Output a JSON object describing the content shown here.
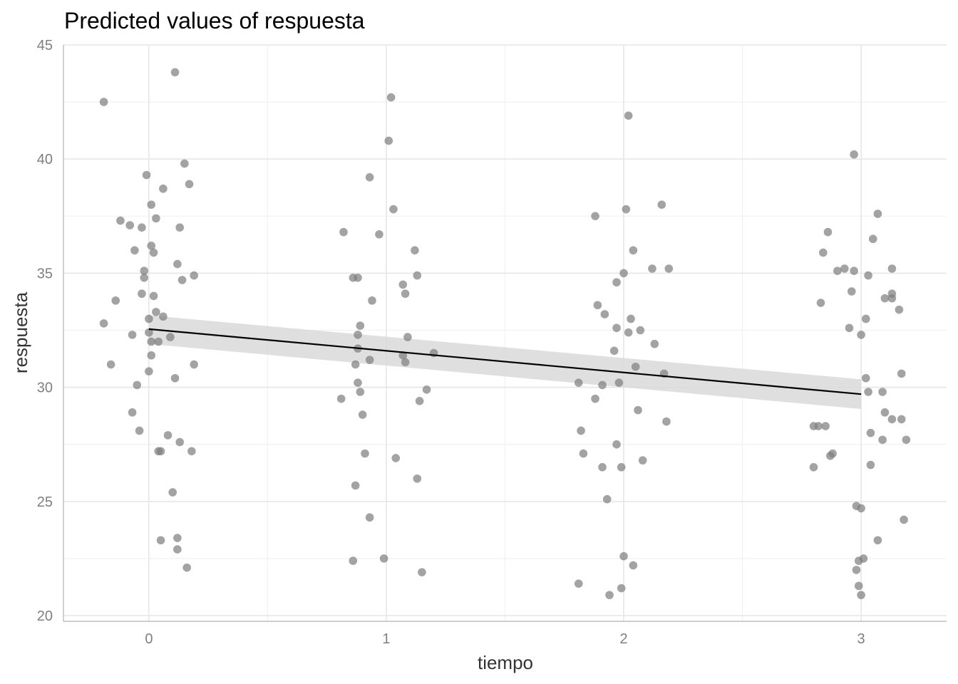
{
  "chart_data": {
    "type": "scatter",
    "title": "Predicted values of respuesta",
    "xlabel": "tiempo",
    "ylabel": "respuesta",
    "xlim": [
      -0.36,
      3.36
    ],
    "ylim": [
      19.75,
      45.0
    ],
    "x_ticks": [
      0,
      1,
      2,
      3
    ],
    "x_tick_labels": [
      "0",
      "1",
      "2",
      "3"
    ],
    "y_ticks": [
      20,
      25,
      30,
      35,
      40,
      45
    ],
    "y_tick_labels": [
      "20",
      "25",
      "30",
      "35",
      "40",
      "45"
    ],
    "grid": true,
    "colors": {
      "points": "#7f7f7f",
      "line": "#000000",
      "ribbon": "#d9d9d9"
    },
    "fit_line": {
      "x": [
        0,
        3
      ],
      "y": [
        32.55,
        29.7
      ]
    },
    "confidence_band": {
      "x": [
        0,
        3
      ],
      "lower": [
        31.9,
        29.05
      ],
      "upper": [
        33.15,
        30.35
      ]
    },
    "points": [
      [
        -0.19,
        42.5
      ],
      [
        -0.19,
        32.8
      ],
      [
        -0.16,
        31.0
      ],
      [
        -0.14,
        33.8
      ],
      [
        -0.12,
        37.3
      ],
      [
        -0.08,
        37.1
      ],
      [
        -0.07,
        32.3
      ],
      [
        -0.07,
        28.9
      ],
      [
        -0.06,
        36.0
      ],
      [
        -0.05,
        30.1
      ],
      [
        -0.04,
        28.1
      ],
      [
        -0.03,
        37.0
      ],
      [
        -0.03,
        34.1
      ],
      [
        -0.02,
        35.1
      ],
      [
        -0.02,
        34.8
      ],
      [
        -0.01,
        39.3
      ],
      [
        0.0,
        33.0
      ],
      [
        0.0,
        32.4
      ],
      [
        0.0,
        30.7
      ],
      [
        0.01,
        38.0
      ],
      [
        0.01,
        36.2
      ],
      [
        0.01,
        32.0
      ],
      [
        0.01,
        31.4
      ],
      [
        0.02,
        35.9
      ],
      [
        0.02,
        34.0
      ],
      [
        0.03,
        33.3
      ],
      [
        0.03,
        37.4
      ],
      [
        0.04,
        32.0
      ],
      [
        0.04,
        27.2
      ],
      [
        0.05,
        23.3
      ],
      [
        0.05,
        27.2
      ],
      [
        0.06,
        38.7
      ],
      [
        0.06,
        33.1
      ],
      [
        0.08,
        27.9
      ],
      [
        0.09,
        32.2
      ],
      [
        0.1,
        25.4
      ],
      [
        0.11,
        30.4
      ],
      [
        0.11,
        43.8
      ],
      [
        0.12,
        23.4
      ],
      [
        0.12,
        35.4
      ],
      [
        0.12,
        22.9
      ],
      [
        0.13,
        27.6
      ],
      [
        0.13,
        37.0
      ],
      [
        0.14,
        34.7
      ],
      [
        0.15,
        39.8
      ],
      [
        0.16,
        22.1
      ],
      [
        0.17,
        38.9
      ],
      [
        0.18,
        27.2
      ],
      [
        0.19,
        34.9
      ],
      [
        0.19,
        31.0
      ],
      [
        0.81,
        29.5
      ],
      [
        0.82,
        36.8
      ],
      [
        0.86,
        34.8
      ],
      [
        0.86,
        22.4
      ],
      [
        0.87,
        31.0
      ],
      [
        0.87,
        25.7
      ],
      [
        0.88,
        30.2
      ],
      [
        0.88,
        34.8
      ],
      [
        0.88,
        31.7
      ],
      [
        0.88,
        32.3
      ],
      [
        0.89,
        32.7
      ],
      [
        0.89,
        29.8
      ],
      [
        0.9,
        28.8
      ],
      [
        0.91,
        27.1
      ],
      [
        0.93,
        31.2
      ],
      [
        0.93,
        39.2
      ],
      [
        0.93,
        24.3
      ],
      [
        0.94,
        33.8
      ],
      [
        0.97,
        36.7
      ],
      [
        0.99,
        22.5
      ],
      [
        1.01,
        40.8
      ],
      [
        1.02,
        42.7
      ],
      [
        1.03,
        37.8
      ],
      [
        1.04,
        26.9
      ],
      [
        1.07,
        34.5
      ],
      [
        1.07,
        31.4
      ],
      [
        1.08,
        34.1
      ],
      [
        1.08,
        31.1
      ],
      [
        1.09,
        32.2
      ],
      [
        1.12,
        36.0
      ],
      [
        1.13,
        26.0
      ],
      [
        1.13,
        34.9
      ],
      [
        1.14,
        29.4
      ],
      [
        1.15,
        21.9
      ],
      [
        1.17,
        29.9
      ],
      [
        1.2,
        31.5
      ],
      [
        1.81,
        21.4
      ],
      [
        1.81,
        30.2
      ],
      [
        1.82,
        28.1
      ],
      [
        1.83,
        27.1
      ],
      [
        1.88,
        29.5
      ],
      [
        1.88,
        37.5
      ],
      [
        1.89,
        33.6
      ],
      [
        1.91,
        26.5
      ],
      [
        1.91,
        30.1
      ],
      [
        1.92,
        33.2
      ],
      [
        1.93,
        25.1
      ],
      [
        1.94,
        20.9
      ],
      [
        1.96,
        31.6
      ],
      [
        1.97,
        32.6
      ],
      [
        1.97,
        34.6
      ],
      [
        1.97,
        27.5
      ],
      [
        1.98,
        30.2
      ],
      [
        1.99,
        21.2
      ],
      [
        1.99,
        26.5
      ],
      [
        2.0,
        22.6
      ],
      [
        2.0,
        35.0
      ],
      [
        2.01,
        37.8
      ],
      [
        2.02,
        32.4
      ],
      [
        2.02,
        41.9
      ],
      [
        2.03,
        33.0
      ],
      [
        2.04,
        36.0
      ],
      [
        2.04,
        22.2
      ],
      [
        2.05,
        30.9
      ],
      [
        2.06,
        29.0
      ],
      [
        2.07,
        32.5
      ],
      [
        2.08,
        26.8
      ],
      [
        2.12,
        35.2
      ],
      [
        2.13,
        31.9
      ],
      [
        2.16,
        38.0
      ],
      [
        2.17,
        30.6
      ],
      [
        2.18,
        28.5
      ],
      [
        2.19,
        35.2
      ],
      [
        2.8,
        28.3
      ],
      [
        2.8,
        26.5
      ],
      [
        2.82,
        28.3
      ],
      [
        2.83,
        33.7
      ],
      [
        2.84,
        35.9
      ],
      [
        2.85,
        28.3
      ],
      [
        2.86,
        36.8
      ],
      [
        2.87,
        27.0
      ],
      [
        2.88,
        27.1
      ],
      [
        2.9,
        35.1
      ],
      [
        2.93,
        35.2
      ],
      [
        2.95,
        32.6
      ],
      [
        2.96,
        34.2
      ],
      [
        2.97,
        35.1
      ],
      [
        2.97,
        40.2
      ],
      [
        2.98,
        24.8
      ],
      [
        2.98,
        22.0
      ],
      [
        2.99,
        21.3
      ],
      [
        2.99,
        22.4
      ],
      [
        3.0,
        24.7
      ],
      [
        3.0,
        20.9
      ],
      [
        3.0,
        32.3
      ],
      [
        3.01,
        22.5
      ],
      [
        3.02,
        30.4
      ],
      [
        3.02,
        33.0
      ],
      [
        3.03,
        34.9
      ],
      [
        3.03,
        29.8
      ],
      [
        3.04,
        26.6
      ],
      [
        3.04,
        28.0
      ],
      [
        3.05,
        36.5
      ],
      [
        3.07,
        37.6
      ],
      [
        3.07,
        23.3
      ],
      [
        3.09,
        29.8
      ],
      [
        3.09,
        27.7
      ],
      [
        3.1,
        28.9
      ],
      [
        3.1,
        33.9
      ],
      [
        3.13,
        34.1
      ],
      [
        3.13,
        33.9
      ],
      [
        3.13,
        35.2
      ],
      [
        3.13,
        28.6
      ],
      [
        3.16,
        33.4
      ],
      [
        3.17,
        28.6
      ],
      [
        3.17,
        30.6
      ],
      [
        3.18,
        24.2
      ],
      [
        3.19,
        27.7
      ]
    ]
  }
}
